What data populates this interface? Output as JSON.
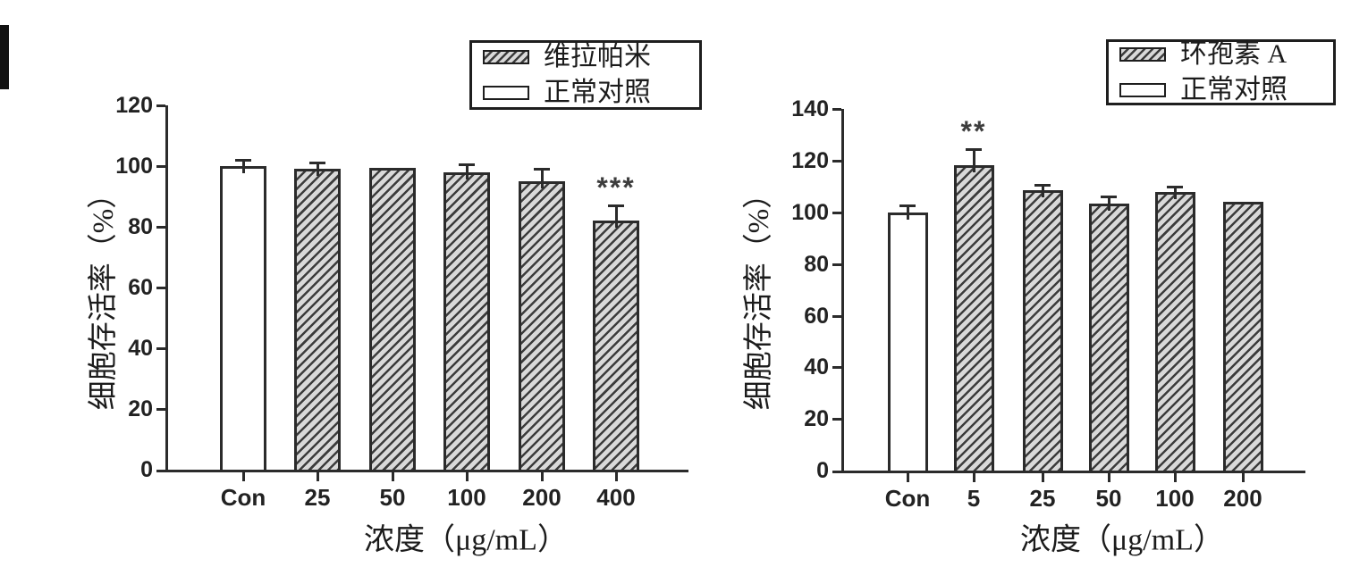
{
  "palette": {
    "axis": "#2b2b2b",
    "text": "#222222",
    "hatch_fill": "#d9d9d9",
    "hatch_line": "#3c3c3c",
    "bar_white": "#ffffff",
    "background": "#ffffff"
  },
  "chart_data": [
    {
      "type": "bar",
      "title": "",
      "ylabel": "细胞存活率（%）",
      "xlabel": "浓度（μg/mL）",
      "ylim": [
        0,
        120
      ],
      "yticks": [
        0,
        20,
        40,
        60,
        80,
        100,
        120
      ],
      "categories": [
        "Con",
        "25",
        "50",
        "100",
        "200",
        "400"
      ],
      "values": [
        100,
        99,
        99.5,
        98,
        95,
        82
      ],
      "errors": [
        1.5,
        1.5,
        0.5,
        2,
        3.5,
        4.5
      ],
      "annotations": [
        "",
        "",
        "",
        "",
        "",
        "***"
      ],
      "bar_styles": [
        "white",
        "hatch",
        "hatch",
        "hatch",
        "hatch",
        "hatch"
      ],
      "legend": [
        {
          "label": "维拉帕米",
          "swatch": "hatch"
        },
        {
          "label": "正常对照",
          "swatch": "white"
        }
      ],
      "legend_position": "top-right",
      "grid": false,
      "group_underline": {
        "from": "25",
        "to": "400"
      }
    },
    {
      "type": "bar",
      "title": "",
      "ylabel": "细胞存活率（%）",
      "xlabel": "浓度（μg/mL）",
      "ylim": [
        0,
        140
      ],
      "yticks": [
        0,
        20,
        40,
        60,
        80,
        100,
        120,
        140
      ],
      "categories": [
        "Con",
        "5",
        "25",
        "50",
        "100",
        "200"
      ],
      "values": [
        100,
        118.5,
        108.5,
        103.5,
        108,
        104
      ],
      "errors": [
        2,
        5.5,
        1.5,
        2,
        1.5,
        1
      ],
      "annotations": [
        "",
        "**",
        "",
        "",
        "",
        ""
      ],
      "bar_styles": [
        "white",
        "hatch",
        "hatch",
        "hatch",
        "hatch",
        "hatch"
      ],
      "legend": [
        {
          "label": "环孢素 A",
          "swatch": "hatch"
        },
        {
          "label": "正常对照",
          "swatch": "white"
        }
      ],
      "legend_position": "top-right",
      "grid": false,
      "group_underline": {
        "from": "5",
        "to": "200"
      }
    }
  ]
}
